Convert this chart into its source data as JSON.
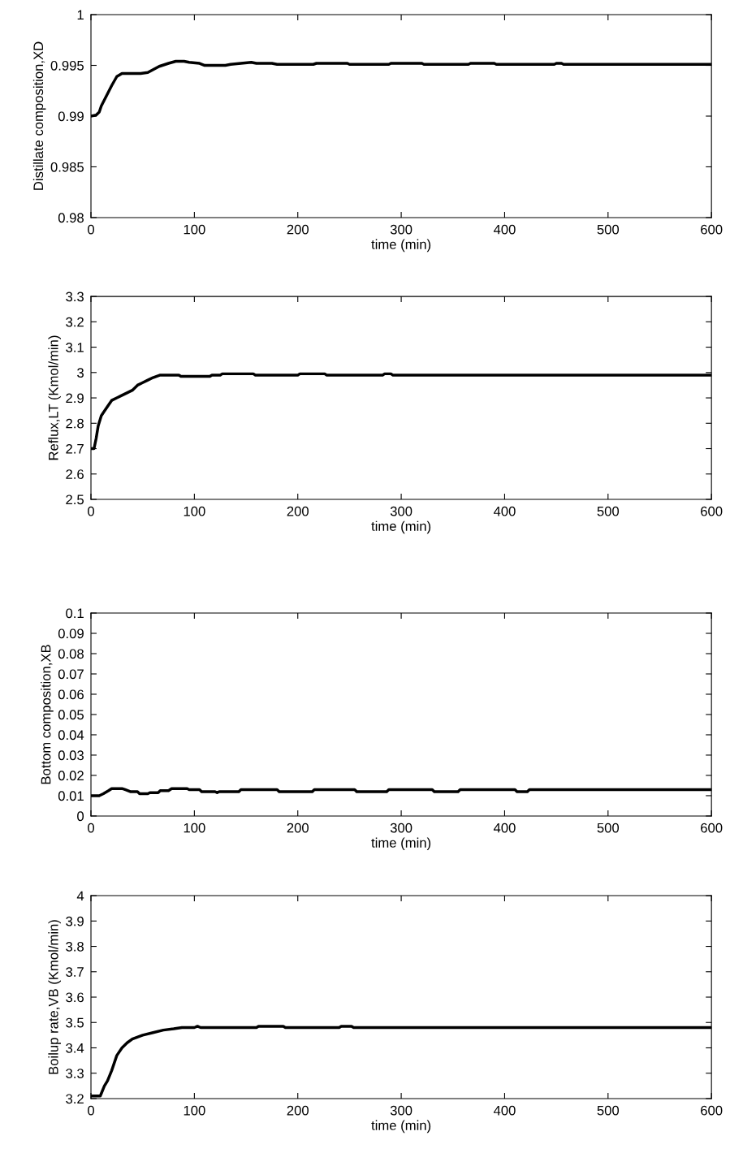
{
  "chart_data": [
    {
      "type": "line",
      "xlabel": "time (min)",
      "ylabel": "Distillate composition,XD",
      "xlim": [
        0,
        600
      ],
      "ylim": [
        0.98,
        1
      ],
      "xticks": [
        0,
        100,
        200,
        300,
        400,
        500,
        600
      ],
      "yticks": [
        0.98,
        0.985,
        0.99,
        0.995,
        1
      ],
      "grid": false,
      "marker": "none",
      "line_style": "solid",
      "x": [
        0,
        5,
        8,
        10,
        15,
        20,
        25,
        30,
        48,
        55,
        66,
        75,
        82,
        90,
        95,
        105,
        110,
        130,
        135,
        145,
        155,
        160,
        175,
        180,
        215,
        218,
        248,
        250,
        288,
        290,
        320,
        322,
        365,
        367,
        390,
        392,
        448,
        450,
        455,
        457,
        600
      ],
      "series": [
        {
          "color": "#000000",
          "values": [
            0.99,
            0.9901,
            0.9904,
            0.991,
            0.992,
            0.993,
            0.9939,
            0.9942,
            0.9942,
            0.9943,
            0.9949,
            0.9952,
            0.9954,
            0.9954,
            0.9953,
            0.9952,
            0.995,
            0.995,
            0.9951,
            0.9952,
            0.9953,
            0.9952,
            0.9952,
            0.9951,
            0.9951,
            0.9952,
            0.9952,
            0.9951,
            0.9951,
            0.9952,
            0.9952,
            0.9951,
            0.9951,
            0.9952,
            0.9952,
            0.9951,
            0.9951,
            0.9952,
            0.9952,
            0.9951,
            0.9951
          ]
        }
      ]
    },
    {
      "type": "line",
      "xlabel": "time (min)",
      "ylabel": "Reflux,LT (Kmol/min)",
      "xlim": [
        0,
        600
      ],
      "ylim": [
        2.5,
        3.3
      ],
      "xticks": [
        0,
        100,
        200,
        300,
        400,
        500,
        600
      ],
      "yticks": [
        2.5,
        2.6,
        2.7,
        2.8,
        2.9,
        3,
        3.1,
        3.2,
        3.3
      ],
      "grid": false,
      "marker": "none",
      "line_style": "solid",
      "x": [
        0,
        3,
        5,
        7,
        10,
        15,
        20,
        25,
        30,
        40,
        45,
        50,
        55,
        60,
        67,
        85,
        87,
        115,
        117,
        125,
        127,
        157,
        159,
        200,
        202,
        226,
        228,
        282,
        284,
        290,
        292,
        600
      ],
      "series": [
        {
          "color": "#000000",
          "values": [
            2.7,
            2.7,
            2.74,
            2.79,
            2.83,
            2.86,
            2.89,
            2.9,
            2.91,
            2.93,
            2.95,
            2.96,
            2.97,
            2.98,
            2.99,
            2.99,
            2.985,
            2.985,
            2.99,
            2.99,
            2.995,
            2.995,
            2.99,
            2.99,
            2.995,
            2.995,
            2.99,
            2.99,
            2.995,
            2.995,
            2.99,
            2.99
          ]
        }
      ]
    },
    {
      "type": "line",
      "xlabel": "time (min)",
      "ylabel": "Bottom composition,XB",
      "xlim": [
        0,
        600
      ],
      "ylim": [
        0,
        0.1
      ],
      "xticks": [
        0,
        100,
        200,
        300,
        400,
        500,
        600
      ],
      "yticks": [
        0,
        0.01,
        0.02,
        0.03,
        0.04,
        0.05,
        0.06,
        0.07,
        0.08,
        0.09,
        0.1
      ],
      "grid": false,
      "marker": "none",
      "line_style": "solid",
      "x": [
        0,
        8,
        12,
        17,
        20,
        30,
        33,
        38,
        45,
        47,
        55,
        57,
        65,
        67,
        75,
        78,
        93,
        95,
        105,
        107,
        120,
        122,
        124,
        143,
        145,
        180,
        182,
        214,
        216,
        255,
        257,
        286,
        288,
        330,
        332,
        355,
        357,
        410,
        412,
        422,
        424,
        600
      ],
      "series": [
        {
          "color": "#000000",
          "values": [
            0.01,
            0.01,
            0.011,
            0.0125,
            0.0135,
            0.0135,
            0.013,
            0.012,
            0.012,
            0.011,
            0.011,
            0.0115,
            0.0115,
            0.0125,
            0.0125,
            0.0135,
            0.0135,
            0.013,
            0.013,
            0.012,
            0.012,
            0.0115,
            0.012,
            0.012,
            0.013,
            0.013,
            0.012,
            0.012,
            0.013,
            0.013,
            0.012,
            0.012,
            0.013,
            0.013,
            0.012,
            0.012,
            0.013,
            0.013,
            0.012,
            0.012,
            0.013,
            0.013
          ]
        }
      ]
    },
    {
      "type": "line",
      "xlabel": "time (min)",
      "ylabel": "Boilup rate,VB (Kmol/min)",
      "xlim": [
        0,
        600
      ],
      "ylim": [
        3.2,
        4
      ],
      "xticks": [
        0,
        100,
        200,
        300,
        400,
        500,
        600
      ],
      "yticks": [
        3.2,
        3.3,
        3.4,
        3.5,
        3.6,
        3.7,
        3.8,
        3.9,
        4
      ],
      "grid": false,
      "marker": "none",
      "line_style": "solid",
      "x": [
        0,
        9,
        10,
        13,
        16,
        20,
        25,
        30,
        35,
        40,
        50,
        60,
        70,
        80,
        88,
        100,
        103,
        106,
        160,
        162,
        186,
        188,
        240,
        242,
        252,
        254,
        600
      ],
      "series": [
        {
          "color": "#000000",
          "values": [
            3.21,
            3.21,
            3.22,
            3.25,
            3.27,
            3.31,
            3.37,
            3.4,
            3.42,
            3.435,
            3.45,
            3.46,
            3.47,
            3.475,
            3.48,
            3.48,
            3.485,
            3.48,
            3.48,
            3.485,
            3.485,
            3.48,
            3.48,
            3.485,
            3.485,
            3.48,
            3.48
          ]
        }
      ]
    }
  ]
}
